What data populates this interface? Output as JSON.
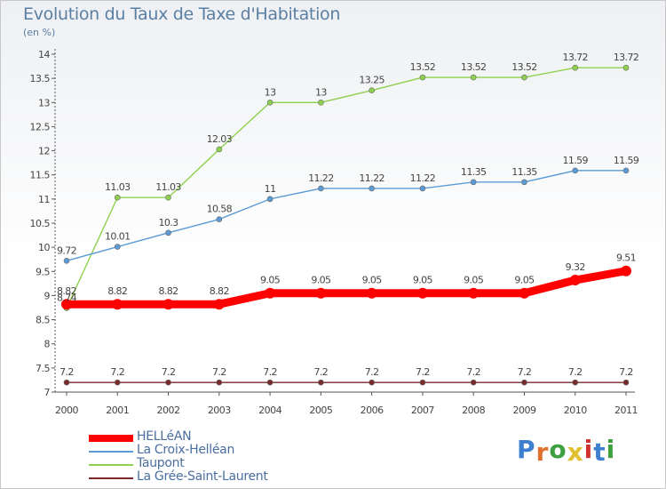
{
  "header": {
    "title": "Evolution du Taux de Taxe d'Habitation",
    "subtitle": "(en %)"
  },
  "brand": {
    "text": "Proxiti",
    "letter_colors": [
      "#3f7fd0",
      "#e07030",
      "#3fa040",
      "#e0c030",
      "#d03030",
      "#3f7fd0",
      "#3fa040"
    ]
  },
  "chart_data": {
    "type": "line",
    "title": "Evolution du Taux de Taxe d'Habitation",
    "subtitle": "(en %)",
    "x": [
      "2000",
      "2001",
      "2002",
      "2003",
      "2004",
      "2005",
      "2006",
      "2007",
      "2008",
      "2009",
      "2010",
      "2011"
    ],
    "ylim": [
      7,
      14
    ],
    "yticks": [
      "7",
      "7.5",
      "8",
      "8.5",
      "9",
      "9.5",
      "10",
      "10.5",
      "11",
      "11.5",
      "12",
      "12.5",
      "13",
      "13.5",
      "14"
    ],
    "grid": false,
    "legend_position": "bottom-left",
    "series": [
      {
        "name": "HELLéAN",
        "color": "#ff0000",
        "emphasis": true,
        "values": [
          8.82,
          8.82,
          8.82,
          8.82,
          9.05,
          9.05,
          9.05,
          9.05,
          9.05,
          9.05,
          9.32,
          9.51
        ],
        "labels": [
          "8.82",
          "8.82",
          "8.82",
          "8.82",
          "9.05",
          "9.05",
          "9.05",
          "9.05",
          "9.05",
          "9.05",
          "9.32",
          "9.51"
        ]
      },
      {
        "name": "La Croix-Helléan",
        "color": "#5b9bd5",
        "values": [
          9.72,
          10.01,
          10.3,
          10.58,
          11,
          11.22,
          11.22,
          11.22,
          11.35,
          11.35,
          11.59,
          11.59
        ],
        "labels": [
          "9.72",
          "10.01",
          "10.3",
          "10.58",
          "11",
          "11.22",
          "11.22",
          "11.22",
          "11.35",
          "11.35",
          "11.59",
          "11.59"
        ]
      },
      {
        "name": "Taupont",
        "color": "#8fd14f",
        "values": [
          8.74,
          11.03,
          11.03,
          12.03,
          13,
          13,
          13.25,
          13.52,
          13.52,
          13.52,
          13.72,
          13.72
        ],
        "labels": [
          "8.74",
          "11.03",
          "11.03",
          "12.03",
          "13",
          "13",
          "13.25",
          "13.52",
          "13.52",
          "13.52",
          "13.72",
          "13.72"
        ]
      },
      {
        "name": "La Grée-Saint-Laurent",
        "color": "#7a2a2a",
        "values": [
          7.2,
          7.2,
          7.2,
          7.2,
          7.2,
          7.2,
          7.2,
          7.2,
          7.2,
          7.2,
          7.2,
          7.2
        ],
        "labels": [
          "7.2",
          "7.2",
          "7.2",
          "7.2",
          "7.2",
          "7.2",
          "7.2",
          "7.2",
          "7.2",
          "7.2",
          "7.2",
          "7.2"
        ]
      }
    ]
  }
}
